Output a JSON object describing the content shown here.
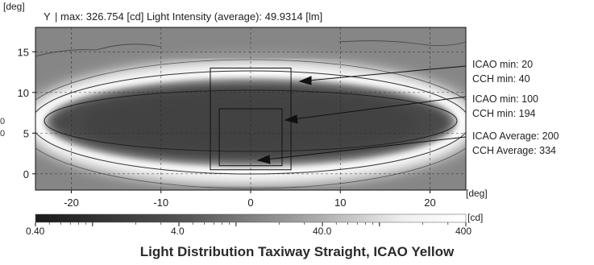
{
  "header": {
    "y_unit": "[deg]",
    "y_name": "Y",
    "stats": "| max: 326.754 [cd] Light Intensity (average): 49.9314 [lm]"
  },
  "side_label": {
    "line1": "0",
    "line2": "0"
  },
  "annotations": [
    {
      "line1": "ICAO min: 20",
      "line2": "CCH min: 40"
    },
    {
      "line1": "ICAO min: 100",
      "line2": "CCH min: 194"
    },
    {
      "line1": "ICAO Average: 200",
      "line2": "CCH Average: 334"
    }
  ],
  "colorbar": {
    "unit": "[cd]",
    "tick_labels": [
      "0.40",
      "4.0",
      "40.0",
      "400"
    ]
  },
  "title": "Light Distribution Taxiway Straight, ICAO Yellow",
  "colors": {
    "low": "#3a3a3a",
    "mid": "#8a8a8a",
    "high": "#ffffff"
  },
  "chart_data": {
    "type": "heatmap",
    "colormap": "grayscale (dark = low, white = high)",
    "scale": "log",
    "x": {
      "label": "[deg]",
      "lim": [
        -24,
        24
      ],
      "ticks": [
        -20,
        -10,
        0,
        10,
        20
      ]
    },
    "y": {
      "label": "[deg]",
      "lim": [
        -2,
        18
      ],
      "ticks": [
        0,
        5,
        10,
        15
      ]
    },
    "color_range": [
      0.4,
      400
    ],
    "grid": true,
    "rectangles": [
      {
        "x0": -4.5,
        "x1": 4.5,
        "y0": 0.5,
        "y1": 13
      },
      {
        "x0": -3.5,
        "x1": 3.5,
        "y0": 1,
        "y1": 8
      }
    ],
    "contour_levels": [
      20,
      100,
      200
    ]
  }
}
